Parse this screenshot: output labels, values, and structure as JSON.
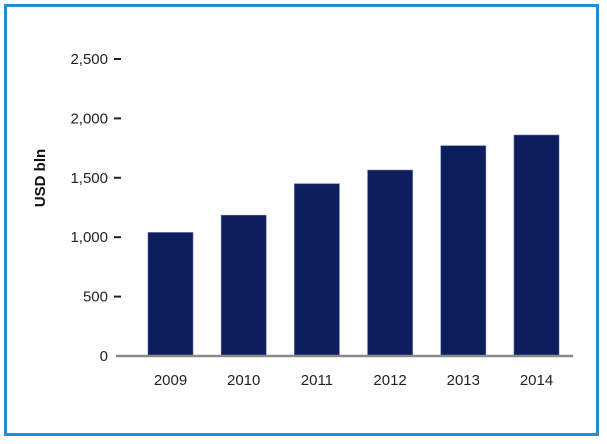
{
  "chart_data": {
    "type": "bar",
    "title": "",
    "xlabel": "",
    "ylabel": "USD bln",
    "categories": [
      "2009",
      "2010",
      "2011",
      "2012",
      "2013",
      "2014"
    ],
    "values": [
      1040,
      1185,
      1450,
      1565,
      1770,
      1860
    ],
    "ylim": [
      0,
      2500
    ],
    "yticks": [
      0,
      500,
      1000,
      1500,
      2000,
      2500
    ],
    "ytick_labels": [
      "0",
      "500",
      "1,000",
      "1,500",
      "2,000",
      "2,500"
    ],
    "grid": false,
    "legend": "none",
    "bar_color": "#0c1f5c",
    "frame_color": "#1e8fd6"
  }
}
